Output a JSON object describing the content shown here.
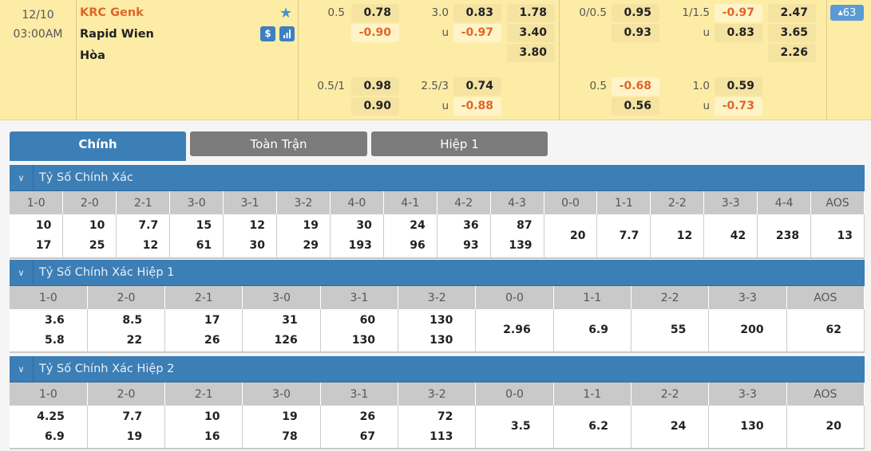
{
  "match": {
    "date": "12/10",
    "time": "03:00AM",
    "home": "KRC Genk",
    "away": "Rapid Wien",
    "draw": "Hòa",
    "more_count": "63",
    "icons": [
      "star-icon",
      "dollar-icon",
      "stats-icon"
    ]
  },
  "colors": {
    "header_bg": "#fdeca6",
    "negative": "#e0662a",
    "tab_active": "#3c7eb6",
    "tab_inactive": "#7b7b7b"
  },
  "odds": [
    {
      "group": 1,
      "rows": [
        [
          "0.5",
          "0.78",
          "3.0",
          "0.83",
          "1.78"
        ],
        [
          "",
          "-0.90",
          "u",
          "-0.97",
          "3.40"
        ],
        [
          "",
          "",
          "",
          "",
          "3.80"
        ],
        [
          "0.5/1",
          "0.98",
          "2.5/3",
          "0.74",
          ""
        ],
        [
          "",
          "0.90",
          "u",
          "-0.88",
          ""
        ]
      ]
    },
    {
      "group": 2,
      "rows": [
        [
          "0/0.5",
          "0.95",
          "1/1.5",
          "-0.97",
          "2.47"
        ],
        [
          "",
          "0.93",
          "u",
          "0.83",
          "3.65"
        ],
        [
          "",
          "",
          "",
          "",
          "2.26"
        ],
        [
          "0.5",
          "-0.68",
          "1.0",
          "0.59",
          ""
        ],
        [
          "",
          "0.56",
          "u",
          "-0.73",
          ""
        ]
      ]
    }
  ],
  "tabs": [
    "Chính",
    "Toàn Trận",
    "Hiệp 1"
  ],
  "sections": [
    {
      "title": "Tỷ Số Chính Xác",
      "headers": [
        "1-0",
        "2-0",
        "2-1",
        "3-0",
        "3-1",
        "3-2",
        "4-0",
        "4-1",
        "4-2",
        "4-3",
        "0-0",
        "1-1",
        "2-2",
        "3-3",
        "4-4",
        "AOS"
      ],
      "values": [
        [
          "10",
          "17"
        ],
        [
          "10",
          "25"
        ],
        [
          "7.7",
          "12"
        ],
        [
          "15",
          "61"
        ],
        [
          "12",
          "30"
        ],
        [
          "19",
          "29"
        ],
        [
          "30",
          "193"
        ],
        [
          "24",
          "96"
        ],
        [
          "36",
          "93"
        ],
        [
          "87",
          "139"
        ],
        [
          "20"
        ],
        [
          "7.7"
        ],
        [
          "12"
        ],
        [
          "42"
        ],
        [
          "238"
        ],
        [
          "13"
        ]
      ]
    },
    {
      "title": "Tỷ Số Chính Xác Hiệp 1",
      "headers": [
        "1-0",
        "2-0",
        "2-1",
        "3-0",
        "3-1",
        "3-2",
        "0-0",
        "1-1",
        "2-2",
        "3-3",
        "AOS"
      ],
      "values": [
        [
          "3.6",
          "5.8"
        ],
        [
          "8.5",
          "22"
        ],
        [
          "17",
          "26"
        ],
        [
          "31",
          "126"
        ],
        [
          "60",
          "130"
        ],
        [
          "130",
          "130"
        ],
        [
          "2.96"
        ],
        [
          "6.9"
        ],
        [
          "55"
        ],
        [
          "200"
        ],
        [
          "62"
        ]
      ]
    },
    {
      "title": "Tỷ Số Chính Xác Hiệp 2",
      "headers": [
        "1-0",
        "2-0",
        "2-1",
        "3-0",
        "3-1",
        "3-2",
        "0-0",
        "1-1",
        "2-2",
        "3-3",
        "AOS"
      ],
      "values": [
        [
          "4.25",
          "6.9"
        ],
        [
          "7.7",
          "19"
        ],
        [
          "10",
          "16"
        ],
        [
          "19",
          "78"
        ],
        [
          "26",
          "67"
        ],
        [
          "72",
          "113"
        ],
        [
          "3.5"
        ],
        [
          "6.2"
        ],
        [
          "24"
        ],
        [
          "130"
        ],
        [
          "20"
        ]
      ]
    }
  ]
}
